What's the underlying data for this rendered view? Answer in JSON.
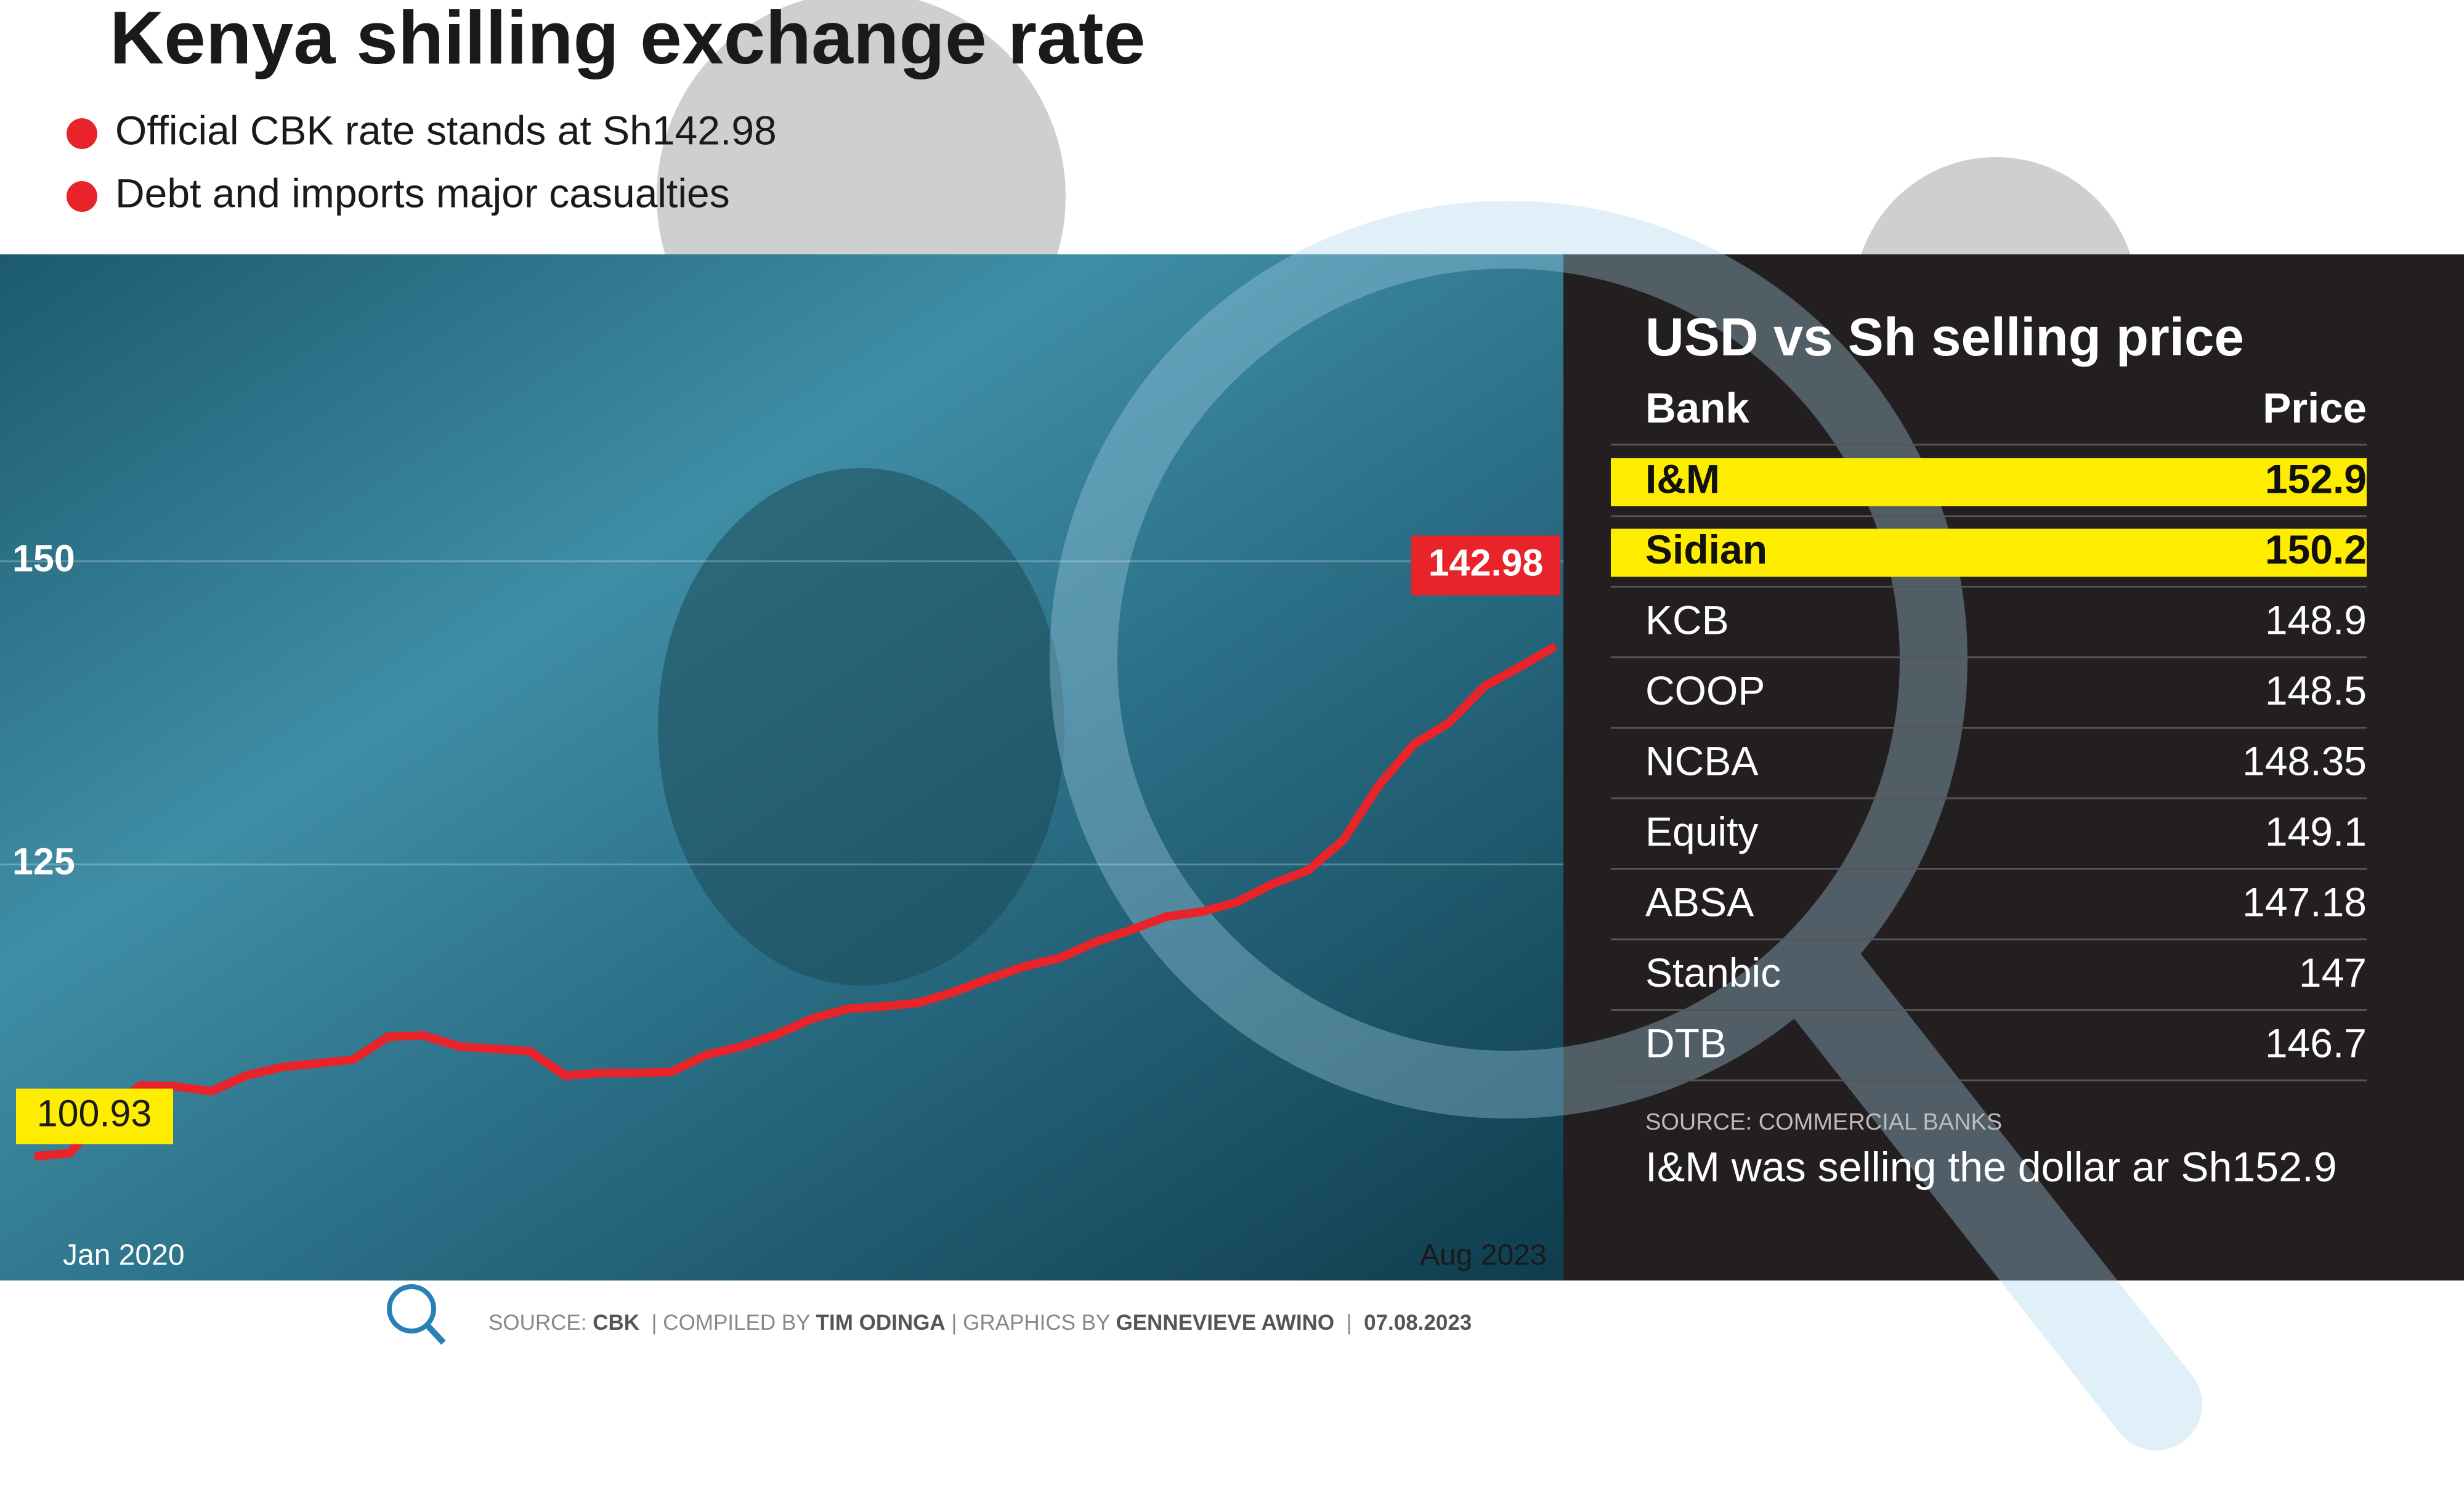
{
  "header": {
    "title": "Kenya shilling exchange rate",
    "bullets": [
      "Official CBK rate stands at Sh142.98",
      "Debt and imports major casualties"
    ]
  },
  "chart_data": {
    "type": "line",
    "categories": [
      "Jan 2020",
      null,
      null,
      null,
      null,
      null,
      null,
      null,
      null,
      null,
      null,
      null,
      null,
      null,
      null,
      null,
      null,
      null,
      null,
      null,
      null,
      null,
      null,
      null,
      null,
      null,
      null,
      null,
      null,
      null,
      null,
      null,
      null,
      null,
      null,
      null,
      null,
      null,
      null,
      null,
      null,
      null,
      null,
      "Aug 2023"
    ],
    "series": [
      {
        "color": "#e8232a",
        "values": [
          100.93,
          101.2,
          104.5,
          106.8,
          106.7,
          106.3,
          107.6,
          108.3,
          108.6,
          108.9,
          110.8,
          110.9,
          110.0,
          109.8,
          109.6,
          107.6,
          107.8,
          107.8,
          107.9,
          109.3,
          110.0,
          111.0,
          112.3,
          113.1,
          113.3,
          113.6,
          114.5,
          115.6,
          116.6,
          117.3,
          118.6,
          119.6,
          120.7,
          121.1,
          121.9,
          123.4,
          124.5,
          127.0,
          131.5,
          134.9,
          136.7,
          139.7,
          141.3,
          142.98
        ]
      }
    ],
    "ylim": [
      90.7,
      175.3
    ],
    "yticks": [
      125,
      150
    ],
    "grid": true
  },
  "table": {
    "title": "USD vs Sh selling price",
    "header": [
      "Bank",
      "Price"
    ],
    "highlight_color": "#ffed00",
    "rows": [
      {
        "bank": "I&M",
        "price": 152.9,
        "highlighted": true
      },
      {
        "bank": "Sidian",
        "price": 150.2,
        "highlighted": true
      },
      {
        "bank": "KCB",
        "price": 148.9,
        "highlighted": false
      },
      {
        "bank": "COOP",
        "price": 148.5,
        "highlighted": false
      },
      {
        "bank": "NCBA",
        "price": 148.35,
        "highlighted": false
      },
      {
        "bank": "Equity",
        "price": 149.1,
        "highlighted": false
      },
      {
        "bank": "ABSA",
        "price": 147.18,
        "highlighted": false
      },
      {
        "bank": "Stanbic",
        "price": 147,
        "highlighted": false
      },
      {
        "bank": "DTB",
        "price": 146.7,
        "highlighted": false
      }
    ],
    "source": "SOURCE: COMMERCIAL BANKS",
    "note": "I&M was selling the dollar ar Sh152.9"
  },
  "footer": [
    {
      "text": "SOURCE: ",
      "bold": false
    },
    {
      "text": "CBK",
      "bold": true
    },
    {
      "text": "  | COMPILED BY ",
      "bold": false
    },
    {
      "text": "TIM ODINGA",
      "bold": true
    },
    {
      "text": " | GRAPHICS BY ",
      "bold": false
    },
    {
      "text": "GENNEVIEVE AWINO",
      "bold": true
    },
    {
      "text": "  |  ",
      "bold": false
    },
    {
      "text": "07.08.2023",
      "bold": true
    }
  ]
}
